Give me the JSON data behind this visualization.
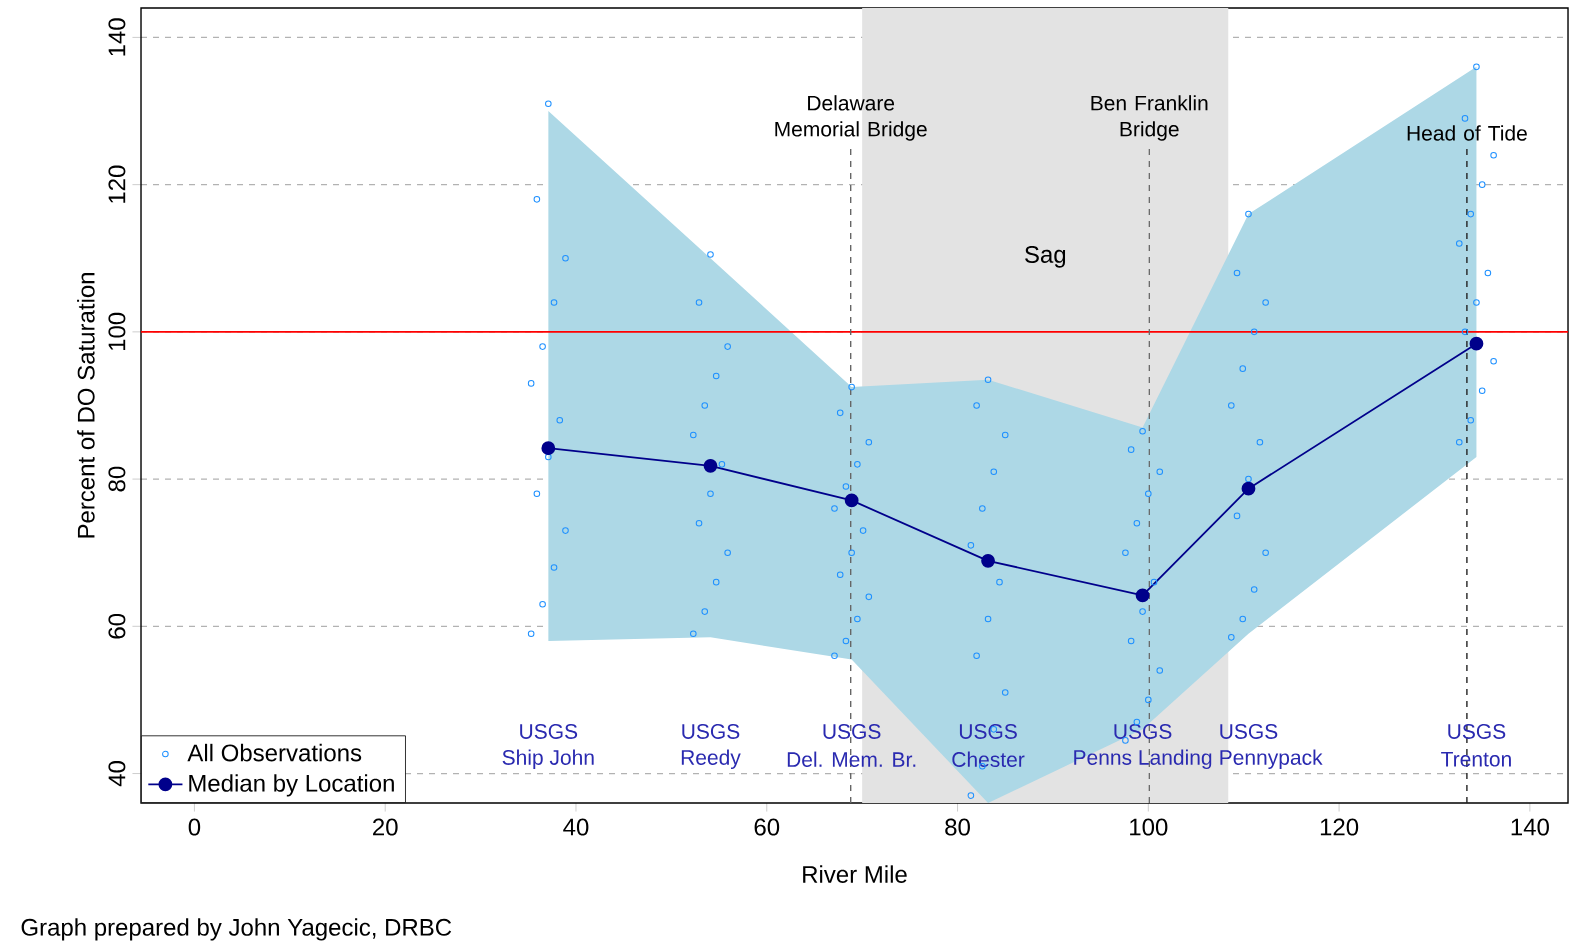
{
  "chart_data": {
    "type": "scatter",
    "xlabel": "River Mile",
    "ylabel": "Percent of DO Saturation",
    "xlim": [
      -5.6,
      144
    ],
    "ylim": [
      36,
      144
    ],
    "xticks": [
      0,
      20,
      40,
      60,
      80,
      100,
      120,
      140
    ],
    "yticks": [
      40,
      60,
      80,
      100,
      120,
      140
    ],
    "grid": "y",
    "legend": "bottom left",
    "series": [
      {
        "name": "All Observations",
        "marker": "circle",
        "color": "#1E90FF",
        "x": [
          35.3,
          36.5,
          37.7,
          38.9,
          35.9,
          37.1,
          38.3,
          35.3,
          36.5,
          37.7,
          38.9,
          35.9,
          37.1,
          52.3,
          53.5,
          54.7,
          55.9,
          52.9,
          54.1,
          55.3,
          52.3,
          53.5,
          54.7,
          55.9,
          52.9,
          54.1,
          67.1,
          68.3,
          69.5,
          70.7,
          67.7,
          68.9,
          70.1,
          67.1,
          68.3,
          69.5,
          70.7,
          67.7,
          68.9,
          81.4,
          82.6,
          83.8,
          85.0,
          82.0,
          83.2,
          84.4,
          81.4,
          82.6,
          83.8,
          85.0,
          82.0,
          83.2,
          97.6,
          98.8,
          100.0,
          101.2,
          98.2,
          99.4,
          100.6,
          97.6,
          98.8,
          100.0,
          101.2,
          98.2,
          99.4,
          108.7,
          109.9,
          111.1,
          112.3,
          109.3,
          110.5,
          111.7,
          108.7,
          109.9,
          111.1,
          112.3,
          109.3,
          110.5,
          132.6,
          133.8,
          135.0,
          136.2,
          133.2,
          134.4,
          135.6,
          132.6,
          133.8,
          135.0,
          136.2,
          133.2,
          134.4
        ],
        "values": [
          59,
          63,
          68,
          73,
          78,
          83,
          88,
          93,
          98,
          104,
          110,
          118,
          131,
          59,
          62,
          66,
          70,
          74,
          78,
          82,
          86,
          90,
          94,
          98,
          104,
          110.5,
          56,
          58,
          61,
          64,
          67,
          70,
          73,
          76,
          79,
          82,
          85,
          89,
          92.5,
          37,
          41,
          46,
          51,
          56,
          61,
          66,
          71,
          76,
          81,
          86,
          90,
          93.5,
          44.5,
          47,
          50,
          54,
          58,
          62,
          66,
          70,
          74,
          78,
          81,
          84,
          86.5,
          58.5,
          61,
          65,
          70,
          75,
          80,
          85,
          90,
          95,
          100,
          104,
          108,
          116,
          85,
          88,
          92,
          96,
          100,
          104,
          108,
          112,
          116,
          120,
          124,
          129,
          136
        ]
      },
      {
        "name": "Median by Location",
        "type": "line",
        "marker": "circle",
        "color": "#00008B",
        "x": [
          37.1,
          54.1,
          68.9,
          83.2,
          99.4,
          110.5,
          134.4
        ],
        "values": [
          84.2,
          81.8,
          77.1,
          68.9,
          64.2,
          78.7,
          98.4
        ],
        "lower": [
          58,
          58.5,
          55.5,
          36,
          46,
          59,
          83
        ],
        "upper": [
          130,
          110,
          92.5,
          93.5,
          87,
          116,
          136
        ]
      }
    ],
    "ref_lines": [
      {
        "axis": "y",
        "value": 100,
        "color": "#FF0000",
        "line_style": "solid"
      },
      {
        "axis": "x",
        "value": 68.8,
        "label": "Delaware Memorial Bridge",
        "color": "#666666",
        "line_style": "dashed"
      },
      {
        "axis": "x",
        "value": 100.1,
        "label": "Ben Franklin Bridge",
        "color": "#666666",
        "line_style": "dashed"
      },
      {
        "axis": "x",
        "value": 133.4,
        "label": "Head of Tide",
        "color": "#222222",
        "line_style": "dashed"
      }
    ],
    "bands": [
      {
        "axis": "x",
        "from": 70.0,
        "to": 108.4,
        "label": "Sag",
        "color": "#E3E3E3"
      }
    ],
    "annotations": [
      "USGS",
      "Ship John",
      "USGS",
      "Reedy",
      "USGS",
      "Del. Mem. Br.",
      "USGS",
      "Chester",
      "USGS",
      "Penns Landing",
      "USGS",
      "Pennypack",
      "USGS",
      "Trenton",
      "Graph prepared by John Yagecic, DRBC"
    ]
  }
}
